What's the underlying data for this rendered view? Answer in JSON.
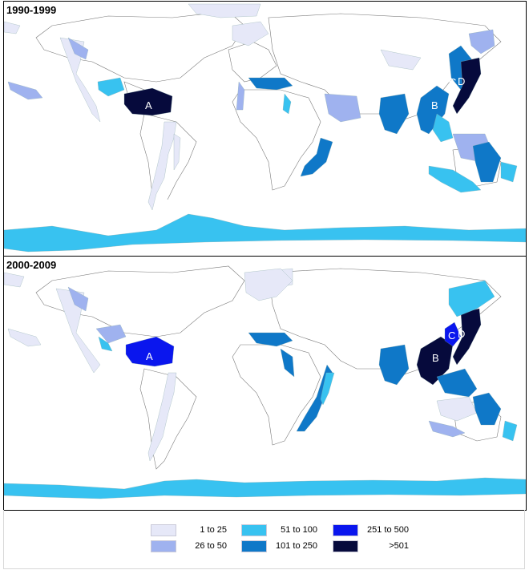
{
  "panels": [
    {
      "label": "1990-1999",
      "markers": [
        "A",
        "B",
        "C",
        "D"
      ]
    },
    {
      "label": "2000-2009",
      "markers": [
        "A",
        "B",
        "C",
        "D"
      ]
    }
  ],
  "legend": [
    {
      "label": "1 to 25",
      "color": "#e6e8f8"
    },
    {
      "label": "26 to 50",
      "color": "#9fb2ef"
    },
    {
      "label": "51 to 100",
      "color": "#38c2f0"
    },
    {
      "label": "101 to 250",
      "color": "#0f78c8"
    },
    {
      "label": "251 to 500",
      "color": "#0a16ee"
    },
    {
      "label": ">501",
      "color": "#060a3c"
    }
  ]
}
